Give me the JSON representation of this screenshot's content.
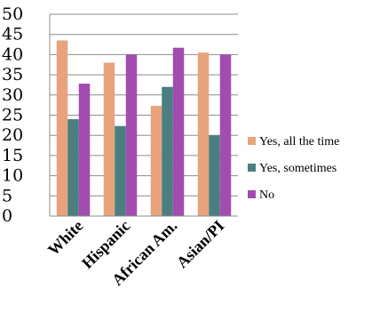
{
  "chart_data": {
    "type": "bar",
    "categories": [
      "White",
      "Hispanic",
      "African Am.",
      "Asian/PI"
    ],
    "series": [
      {
        "name": "Yes, all the time",
        "values": [
          43.5,
          38,
          27.3,
          40.5
        ],
        "color": "#E8A37C"
      },
      {
        "name": "Yes, sometimes",
        "values": [
          24,
          22.3,
          32,
          20
        ],
        "color": "#4A7E80"
      },
      {
        "name": "No",
        "values": [
          32.8,
          40,
          41.7,
          40
        ],
        "color": "#A24CB0"
      }
    ],
    "ylim": [
      0,
      50
    ],
    "yticks": [
      "0",
      "5",
      "10",
      "15",
      "20",
      "25",
      "30",
      "35",
      "40",
      "45",
      "50"
    ],
    "grid": true,
    "legend": "right",
    "title": "",
    "xlabel": "",
    "ylabel": ""
  }
}
